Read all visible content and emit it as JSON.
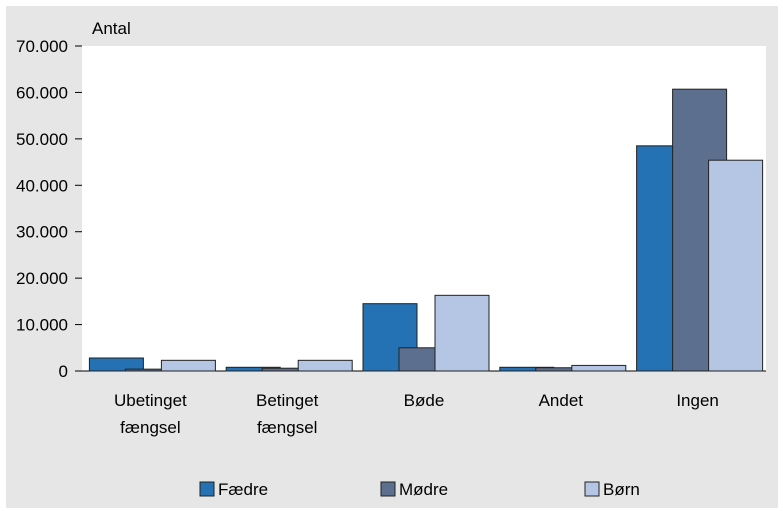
{
  "chart_data": {
    "type": "bar",
    "title": "",
    "ylabel": "Antal",
    "xlabel": "",
    "ylim": [
      0,
      70000
    ],
    "yticks": [
      0,
      10000,
      20000,
      30000,
      40000,
      50000,
      60000,
      70000
    ],
    "ytick_labels": [
      "0",
      "10.000",
      "20.000",
      "30.000",
      "40.000",
      "50.000",
      "60.000",
      "70.000"
    ],
    "categories": [
      [
        "Ubetinget",
        "fængsel"
      ],
      [
        "Betinget",
        "fængsel"
      ],
      [
        "Bøde"
      ],
      [
        "Andet"
      ],
      [
        "Ingen"
      ]
    ],
    "series": [
      {
        "name": "Fædre",
        "color": "#2471b3",
        "values": [
          2800,
          800,
          14500,
          800,
          48500
        ]
      },
      {
        "name": "Mødre",
        "color": "#5d6f8e",
        "values": [
          400,
          600,
          5000,
          700,
          60700
        ]
      },
      {
        "name": "Børn",
        "color": "#b4c6e4",
        "values": [
          2300,
          2300,
          16300,
          1200,
          45400
        ]
      }
    ],
    "grid": false,
    "legend_position": "bottom"
  }
}
